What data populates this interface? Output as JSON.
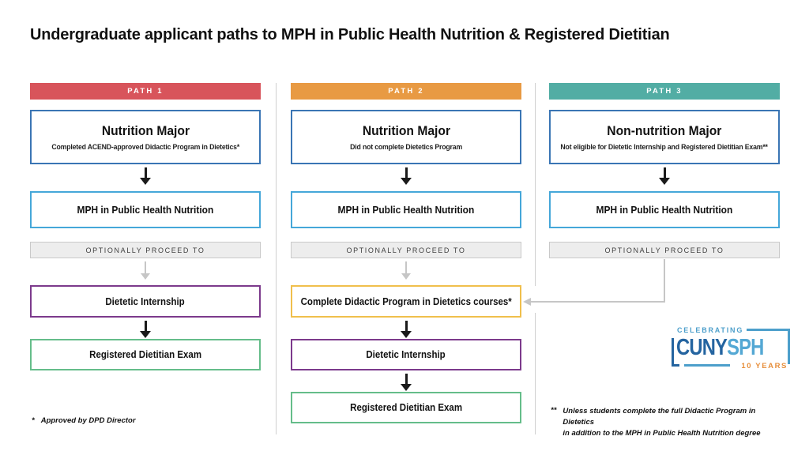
{
  "title": "Undergraduate applicant paths to MPH in Public Health Nutrition & Registered Dietitian",
  "colors": {
    "path1_header": "#D8545B",
    "path2_header": "#E89A43",
    "path3_header": "#52ADA4",
    "major_box_border": "#3A75B4",
    "mph_box_border": "#45A7D9",
    "optional_bar_bg": "#EDEDED",
    "didactic_box_border": "#F0BF4C",
    "internship_box_border": "#7C3A8C",
    "exam_box_border": "#65BD8A",
    "connector_gray": "#C6C6C6",
    "arrow_black": "#1A1A1A",
    "logo_dark_blue": "#2464A0",
    "logo_light_blue": "#54A8D4",
    "logo_orange": "#E78F3C"
  },
  "paths": [
    {
      "header": "PATH 1",
      "major": {
        "title": "Nutrition Major",
        "subtitle": "Completed ACEND-approved Didactic Program in Dietetics*"
      },
      "mph": "MPH in Public Health Nutrition",
      "optional": "OPTIONALLY PROCEED TO",
      "steps": [
        "Dietetic Internship",
        "Registered Dietitian Exam"
      ]
    },
    {
      "header": "PATH 2",
      "major": {
        "title": "Nutrition Major",
        "subtitle": "Did not complete Dietetics Program"
      },
      "mph": "MPH in Public Health Nutrition",
      "optional": "OPTIONALLY PROCEED TO",
      "steps": [
        "Complete Didactic Program in Dietetics courses*",
        "Dietetic Internship",
        "Registered Dietitian Exam"
      ]
    },
    {
      "header": "PATH 3",
      "major": {
        "title": "Non-nutrition Major",
        "subtitle": "Not eligible for Dietetic Internship and Registered Dietitian Exam**"
      },
      "mph": "MPH in Public Health Nutrition",
      "optional": "OPTIONALLY PROCEED TO",
      "steps": []
    }
  ],
  "footnotes": {
    "left_marker": "*",
    "left_text": "Approved by DPD Director",
    "right_marker": "**",
    "right_line1": "Unless students complete the full Didactic Program in Dietetics",
    "right_line2": "in addition to the MPH in Public Health Nutrition degree"
  },
  "logo": {
    "celebrating": "CELEBRATING",
    "cuny": "CUNY",
    "sph": "SPH",
    "years": "10 YEARS"
  }
}
